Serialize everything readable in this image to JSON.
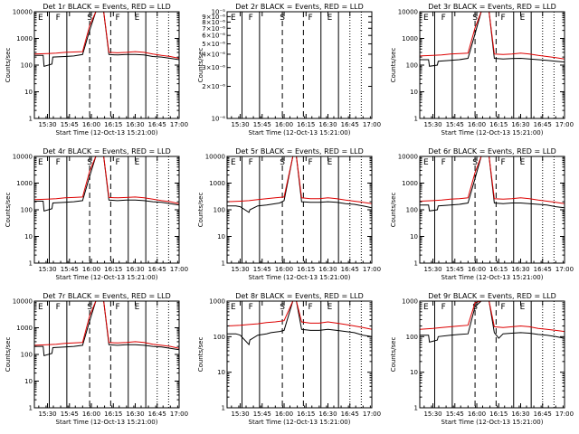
{
  "chart_data": [
    {
      "type": "line",
      "title": "Det 1r  BLACK = Events, RED = LLD",
      "xlabel": "Start Time (12-Oct-13 15:21:00)",
      "ylabel": "Counts/sec",
      "ylog": true,
      "ylim": [
        1,
        10000
      ],
      "yticks": [
        "1",
        "10",
        "100",
        "1000",
        "10000"
      ],
      "xlim": [
        15.35,
        17.0
      ],
      "xticks": [
        "15:30",
        "15:45",
        "16:00",
        "16:15",
        "16:30",
        "16:45",
        "17:00"
      ],
      "flags": [
        "E",
        "F",
        "S",
        "F",
        "E"
      ],
      "series": [
        {
          "name": "Events",
          "color": "#000000",
          "x": [
            15.35,
            15.45,
            15.46,
            15.55,
            15.56,
            15.7,
            15.8,
            15.9,
            15.98,
            16.05,
            16.1,
            16.14,
            16.2,
            16.3,
            16.4,
            16.5,
            16.6,
            16.7,
            16.8,
            16.9,
            17.0
          ],
          "y": [
            230,
            230,
            90,
            110,
            200,
            210,
            220,
            250,
            2000,
            10000,
            10000,
            10000,
            250,
            240,
            250,
            250,
            240,
            210,
            200,
            180,
            160
          ]
        },
        {
          "name": "LLD",
          "color": "#dd0000",
          "x": [
            15.35,
            15.5,
            15.6,
            15.7,
            15.8,
            15.9,
            15.98,
            16.05,
            16.1,
            16.14,
            16.2,
            16.3,
            16.4,
            16.5,
            16.6,
            16.7,
            16.8,
            16.9,
            17.0
          ],
          "y": [
            260,
            270,
            280,
            300,
            310,
            320,
            3000,
            10000,
            10000,
            10000,
            300,
            290,
            300,
            320,
            300,
            260,
            230,
            210,
            180
          ]
        }
      ]
    },
    {
      "type": "line",
      "title": "Det 2r  BLACK = Events, RED = LLD",
      "xlabel": "Start Time (12-Oct-13 15:21:00)",
      "ylabel": "Counts/sec",
      "ylog": true,
      "ylim": [
        1e-06,
        1e-05
      ],
      "yticks": [
        "10⁻⁶",
        "2×10⁻⁶",
        "3×10⁻⁶",
        "4×10⁻⁶",
        "5×10⁻⁶",
        "6×10⁻⁶",
        "7×10⁻⁶",
        "8×10⁻⁶",
        "9×10⁻⁶",
        "10⁻⁵"
      ],
      "xlim": [
        15.35,
        17.0
      ],
      "xticks": [
        "15:30",
        "15:45",
        "16:00",
        "16:15",
        "16:30",
        "16:45",
        "17:00"
      ],
      "flags": [
        "E",
        "F",
        "S",
        "F",
        "E"
      ],
      "series": []
    },
    {
      "type": "line",
      "title": "Det 3r  BLACK = Events, RED = LLD",
      "xlabel": "Start Time (12-Oct-13 15:21:00)",
      "ylabel": "Counts/sec",
      "ylog": true,
      "ylim": [
        1,
        10000
      ],
      "yticks": [
        "1",
        "10",
        "100",
        "1000",
        "10000"
      ],
      "xlim": [
        15.35,
        17.0
      ],
      "xticks": [
        "15:30",
        "15:45",
        "16:00",
        "16:15",
        "16:30",
        "16:45",
        "17:00"
      ],
      "flags": [
        "E",
        "F",
        "S",
        "F",
        "E"
      ],
      "series": [
        {
          "name": "Events",
          "color": "#000000",
          "x": [
            15.35,
            15.45,
            15.46,
            15.55,
            15.56,
            15.7,
            15.8,
            15.9,
            15.98,
            16.05,
            16.1,
            16.14,
            16.2,
            16.3,
            16.4,
            16.5,
            16.6,
            16.7,
            16.8,
            16.9,
            17.0
          ],
          "y": [
            160,
            160,
            90,
            100,
            140,
            150,
            160,
            180,
            1500,
            10000,
            10000,
            10000,
            180,
            170,
            175,
            180,
            170,
            160,
            150,
            140,
            130
          ]
        },
        {
          "name": "LLD",
          "color": "#dd0000",
          "x": [
            15.35,
            15.5,
            15.6,
            15.7,
            15.8,
            15.9,
            15.98,
            16.05,
            16.1,
            16.14,
            16.2,
            16.3,
            16.4,
            16.5,
            16.6,
            16.7,
            16.8,
            16.9,
            17.0
          ],
          "y": [
            220,
            230,
            240,
            260,
            270,
            280,
            2500,
            10000,
            10000,
            10000,
            260,
            250,
            260,
            280,
            260,
            230,
            210,
            190,
            170
          ]
        }
      ]
    },
    {
      "type": "line",
      "title": "Det 4r  BLACK = Events, RED = LLD",
      "xlabel": "Start Time (12-Oct-13 15:21:00)",
      "ylabel": "Counts/sec",
      "ylog": true,
      "ylim": [
        1,
        10000
      ],
      "yticks": [
        "1",
        "10",
        "100",
        "1000",
        "10000"
      ],
      "xlim": [
        15.35,
        17.0
      ],
      "xticks": [
        "15:30",
        "15:45",
        "16:00",
        "16:15",
        "16:30",
        "16:45",
        "17:00"
      ],
      "flags": [
        "E",
        "F",
        "S",
        "F",
        "E"
      ],
      "series": [
        {
          "name": "Events",
          "color": "#000000",
          "x": [
            15.35,
            15.45,
            15.46,
            15.55,
            15.56,
            15.7,
            15.8,
            15.9,
            15.98,
            16.05,
            16.1,
            16.14,
            16.2,
            16.3,
            16.4,
            16.5,
            16.6,
            16.7,
            16.8,
            16.9,
            17.0
          ],
          "y": [
            210,
            210,
            90,
            110,
            180,
            190,
            200,
            220,
            1800,
            10000,
            10000,
            10000,
            230,
            220,
            230,
            230,
            220,
            200,
            190,
            170,
            150
          ]
        },
        {
          "name": "LLD",
          "color": "#dd0000",
          "x": [
            15.35,
            15.5,
            15.6,
            15.7,
            15.8,
            15.9,
            15.98,
            16.05,
            16.1,
            16.14,
            16.2,
            16.3,
            16.4,
            16.5,
            16.6,
            16.7,
            16.8,
            16.9,
            17.0
          ],
          "y": [
            240,
            250,
            260,
            280,
            290,
            300,
            2800,
            10000,
            10000,
            10000,
            290,
            280,
            290,
            300,
            280,
            250,
            220,
            200,
            170
          ]
        }
      ]
    },
    {
      "type": "line",
      "title": "Det 5r  BLACK = Events, RED = LLD",
      "xlabel": "Start Time (12-Oct-13 15:21:00)",
      "ylabel": "Counts/sec",
      "ylog": true,
      "ylim": [
        1,
        10000
      ],
      "yticks": [
        "1",
        "10",
        "100",
        "1000",
        "10000"
      ],
      "xlim": [
        15.35,
        17.0
      ],
      "xticks": [
        "15:30",
        "15:45",
        "16:00",
        "16:15",
        "16:30",
        "16:45",
        "17:00"
      ],
      "flags": [
        "E",
        "F",
        "S",
        "F",
        "E"
      ],
      "series": [
        {
          "name": "Events",
          "color": "#000000",
          "x": [
            15.35,
            15.45,
            15.5,
            15.6,
            15.61,
            15.7,
            15.8,
            15.85,
            15.95,
            16.0,
            16.1,
            16.14,
            16.2,
            16.3,
            16.4,
            16.5,
            16.6,
            16.7,
            16.8,
            16.9,
            17.0
          ],
          "y": [
            140,
            140,
            130,
            80,
            100,
            140,
            150,
            160,
            180,
            220,
            10000,
            10000,
            200,
            190,
            190,
            200,
            190,
            170,
            160,
            140,
            120
          ]
        },
        {
          "name": "LLD",
          "color": "#dd0000",
          "x": [
            15.35,
            15.5,
            15.6,
            15.7,
            15.8,
            15.9,
            16.0,
            16.1,
            16.14,
            16.2,
            16.3,
            16.4,
            16.5,
            16.6,
            16.7,
            16.8,
            16.9,
            17.0
          ],
          "y": [
            200,
            210,
            220,
            240,
            260,
            280,
            300,
            10000,
            10000,
            280,
            260,
            260,
            280,
            260,
            230,
            210,
            190,
            170
          ]
        }
      ]
    },
    {
      "type": "line",
      "title": "Det 6r  BLACK = Events, RED = LLD",
      "xlabel": "Start Time (12-Oct-13 15:21:00)",
      "ylabel": "Counts/sec",
      "ylog": true,
      "ylim": [
        1,
        10000
      ],
      "yticks": [
        "1",
        "10",
        "100",
        "1000",
        "10000"
      ],
      "xlim": [
        15.35,
        17.0
      ],
      "xticks": [
        "15:30",
        "15:45",
        "16:00",
        "16:15",
        "16:30",
        "16:45",
        "17:00"
      ],
      "flags": [
        "E",
        "F",
        "S",
        "F",
        "E"
      ],
      "series": [
        {
          "name": "Events",
          "color": "#000000",
          "x": [
            15.35,
            15.45,
            15.46,
            15.55,
            15.56,
            15.7,
            15.8,
            15.9,
            15.98,
            16.05,
            16.1,
            16.14,
            16.2,
            16.3,
            16.4,
            16.5,
            16.6,
            16.7,
            16.8,
            16.9,
            17.0
          ],
          "y": [
            150,
            150,
            90,
            100,
            140,
            150,
            160,
            180,
            1500,
            10000,
            10000,
            10000,
            180,
            170,
            180,
            180,
            170,
            160,
            150,
            130,
            120
          ]
        },
        {
          "name": "LLD",
          "color": "#dd0000",
          "x": [
            15.35,
            15.5,
            15.6,
            15.7,
            15.8,
            15.9,
            15.98,
            16.05,
            16.1,
            16.14,
            16.2,
            16.3,
            16.4,
            16.5,
            16.6,
            16.7,
            16.8,
            16.9,
            17.0
          ],
          "y": [
            210,
            220,
            230,
            250,
            260,
            280,
            2500,
            10000,
            10000,
            10000,
            260,
            250,
            260,
            280,
            260,
            230,
            210,
            190,
            170
          ]
        }
      ]
    },
    {
      "type": "line",
      "title": "Det 7r  BLACK = Events, RED = LLD",
      "xlabel": "Start Time (12-Oct-13 15:21:00)",
      "ylabel": "Counts/sec",
      "ylog": true,
      "ylim": [
        1,
        10000
      ],
      "yticks": [
        "1",
        "10",
        "100",
        "1000",
        "10000"
      ],
      "xlim": [
        15.35,
        17.0
      ],
      "xticks": [
        "15:30",
        "15:45",
        "16:00",
        "16:15",
        "16:30",
        "16:45",
        "17:00"
      ],
      "flags": [
        "E",
        "F",
        "S",
        "F",
        "E"
      ],
      "series": [
        {
          "name": "Events",
          "color": "#000000",
          "x": [
            15.35,
            15.45,
            15.46,
            15.55,
            15.56,
            15.7,
            15.8,
            15.9,
            15.98,
            16.05,
            16.1,
            16.14,
            16.2,
            16.3,
            16.4,
            16.5,
            16.6,
            16.7,
            16.8,
            16.9,
            17.0
          ],
          "y": [
            200,
            200,
            90,
            110,
            180,
            190,
            200,
            220,
            1800,
            10000,
            10000,
            10000,
            230,
            220,
            230,
            230,
            220,
            200,
            190,
            170,
            150
          ]
        },
        {
          "name": "LLD",
          "color": "#dd0000",
          "x": [
            15.35,
            15.5,
            15.6,
            15.7,
            15.8,
            15.9,
            15.98,
            16.05,
            16.1,
            16.14,
            16.2,
            16.3,
            16.4,
            16.5,
            16.6,
            16.7,
            16.8,
            16.9,
            17.0
          ],
          "y": [
            220,
            230,
            240,
            260,
            270,
            280,
            2800,
            10000,
            10000,
            10000,
            280,
            270,
            280,
            300,
            280,
            240,
            220,
            200,
            170
          ]
        }
      ]
    },
    {
      "type": "line",
      "title": "Det 8r  BLACK = Events, RED = LLD",
      "xlabel": "Start Time (12-Oct-13 15:21:00)",
      "ylabel": "Counts/sec",
      "ylog": true,
      "ylim": [
        1,
        1000
      ],
      "yticks": [
        "1",
        "10",
        "100",
        "1000"
      ],
      "xlim": [
        15.35,
        17.0
      ],
      "xticks": [
        "15:30",
        "15:45",
        "16:00",
        "16:15",
        "16:30",
        "16:45",
        "17:00"
      ],
      "flags": [
        "E",
        "F",
        "S",
        "F",
        "E"
      ],
      "series": [
        {
          "name": "Events",
          "color": "#000000",
          "x": [
            15.35,
            15.45,
            15.5,
            15.6,
            15.61,
            15.7,
            15.8,
            15.85,
            15.95,
            16.0,
            16.1,
            16.14,
            16.2,
            16.3,
            16.4,
            16.5,
            16.6,
            16.7,
            16.8,
            16.9,
            17.0
          ],
          "y": [
            120,
            120,
            110,
            60,
            80,
            110,
            120,
            130,
            140,
            150,
            1000,
            1000,
            160,
            150,
            150,
            160,
            150,
            140,
            130,
            110,
            100
          ]
        },
        {
          "name": "LLD",
          "color": "#dd0000",
          "x": [
            15.35,
            15.5,
            15.6,
            15.7,
            15.8,
            15.9,
            16.0,
            16.1,
            16.14,
            16.2,
            16.3,
            16.4,
            16.5,
            16.6,
            16.7,
            16.8,
            16.9,
            17.0
          ],
          "y": [
            200,
            210,
            220,
            230,
            250,
            260,
            280,
            1000,
            1000,
            260,
            240,
            240,
            260,
            240,
            220,
            200,
            180,
            160
          ]
        }
      ]
    },
    {
      "type": "line",
      "title": "Det 9r  BLACK = Events, RED = LLD",
      "xlabel": "Start Time (12-Oct-13 15:21:00)",
      "ylabel": "Counts/sec",
      "ylog": true,
      "ylim": [
        1,
        1000
      ],
      "yticks": [
        "1",
        "10",
        "100",
        "1000"
      ],
      "xlim": [
        15.35,
        17.0
      ],
      "xticks": [
        "15:30",
        "15:45",
        "16:00",
        "16:15",
        "16:30",
        "16:45",
        "17:00"
      ],
      "flags": [
        "E",
        "F",
        "S",
        "F",
        "E"
      ],
      "series": [
        {
          "name": "Events",
          "color": "#000000",
          "x": [
            15.35,
            15.45,
            15.46,
            15.55,
            15.56,
            15.7,
            15.8,
            15.9,
            15.98,
            16.05,
            16.1,
            16.14,
            16.2,
            16.25,
            16.3,
            16.4,
            16.5,
            16.6,
            16.7,
            16.8,
            16.9,
            17.0
          ],
          "y": [
            110,
            110,
            70,
            80,
            100,
            110,
            115,
            120,
            700,
            1000,
            1000,
            1000,
            130,
            90,
            120,
            125,
            130,
            125,
            115,
            110,
            100,
            90
          ]
        },
        {
          "name": "LLD",
          "color": "#dd0000",
          "x": [
            15.35,
            15.5,
            15.6,
            15.7,
            15.8,
            15.9,
            15.98,
            16.05,
            16.1,
            16.14,
            16.2,
            16.3,
            16.4,
            16.5,
            16.6,
            16.7,
            16.8,
            16.9,
            17.0
          ],
          "y": [
            160,
            170,
            180,
            190,
            200,
            210,
            900,
            1000,
            1000,
            1000,
            190,
            180,
            190,
            200,
            190,
            170,
            160,
            150,
            140
          ]
        }
      ]
    }
  ],
  "markers": [
    {
      "kind": "solid",
      "x": 15.52
    },
    {
      "kind": "solid",
      "x": 15.72
    },
    {
      "kind": "dashed",
      "x": 15.98
    },
    {
      "kind": "dashed",
      "x": 16.22
    },
    {
      "kind": "solid",
      "x": 16.42
    },
    {
      "kind": "solid",
      "x": 16.62
    },
    {
      "kind": "dotted",
      "x": 16.75
    },
    {
      "kind": "dotted",
      "x": 16.88
    }
  ],
  "flag_x": [
    15.42,
    15.62,
    15.98,
    16.3,
    16.52
  ]
}
